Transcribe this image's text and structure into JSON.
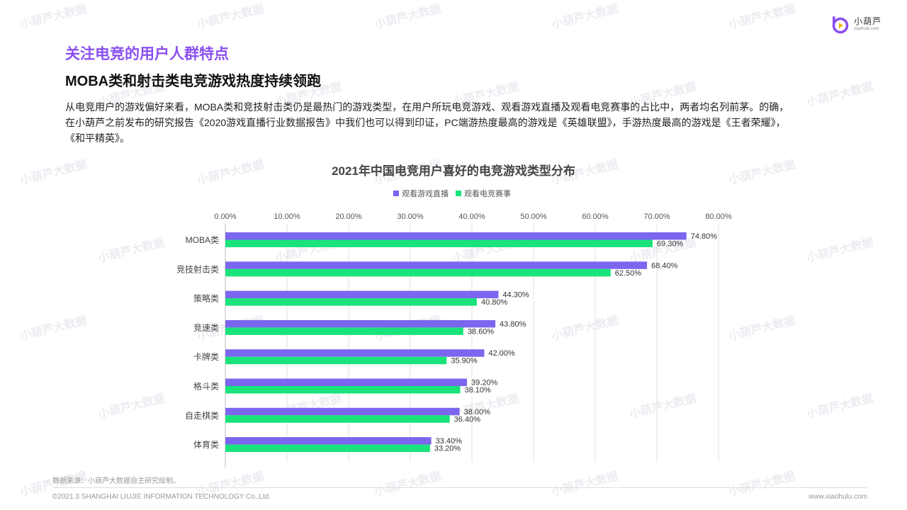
{
  "brand": {
    "name": "小葫芦",
    "url": "xiaohulu.com",
    "color": "#8a4ff0",
    "accent": "#f5b400"
  },
  "watermark": "小葫芦大数据",
  "section_title": "关注电竞的用户人群特点",
  "headline": "MOBA类和射击类电竞游戏热度持续领跑",
  "body": [
    "从电竞用户的游戏偏好来看，MOBA类和竞技射击类仍是最热门的游戏类型，在用户所玩电竞游戏、观看游戏直播及观看电竞赛事的占比中，两者均名列前茅。的确，",
    "在小葫芦之前发布的研究报告《2020游戏直播行业数据报告》中我们也可以得到印证，PC端游热度最高的游戏是《英雄联盟》，手游热度最高的游戏是《王者荣耀》，",
    "《和平精英》。"
  ],
  "chart_data": {
    "type": "bar",
    "orientation": "horizontal",
    "title": "2021年中国电竞用户喜好的电竞游戏类型分布",
    "categories": [
      "MOBA类",
      "竞技射击类",
      "策略类",
      "竞速类",
      "卡牌类",
      "格斗类",
      "自走棋类",
      "体育类"
    ],
    "series": [
      {
        "name": "观看游戏直播",
        "color": "#7b66f0",
        "values": [
          74.8,
          68.4,
          44.3,
          43.8,
          42.0,
          39.2,
          38.0,
          33.4
        ],
        "labels": [
          "74.80%",
          "68.40%",
          "44.30%",
          "43.80%",
          "42.00%",
          "39.20%",
          "38.00%",
          "33.40%"
        ]
      },
      {
        "name": "观看电竞赛事",
        "color": "#19e37a",
        "values": [
          69.3,
          62.5,
          40.8,
          38.6,
          35.9,
          38.1,
          36.4,
          33.2
        ],
        "labels": [
          "69.30%",
          "62.50%",
          "40.80%",
          "38.60%",
          "35.90%",
          "38.10%",
          "36.40%",
          "33.20%"
        ]
      }
    ],
    "xlim": [
      0,
      80
    ],
    "xticks": [
      0,
      10,
      20,
      30,
      40,
      50,
      60,
      70,
      80
    ],
    "xtick_labels": [
      "0.00%",
      "10.00%",
      "20.00%",
      "30.00%",
      "40.00%",
      "50.00%",
      "60.00%",
      "70.00%",
      "80.00%"
    ],
    "legend_position": "top",
    "grid": true
  },
  "source": "数据来源：小葫芦大数据自主研究绘制。",
  "copyright": "©2021.3 SHANGHAI LIUJIE INFORMATION  TECHNOLOGY Co.,Ltd.",
  "site_url": "www.xiaohulu.com"
}
